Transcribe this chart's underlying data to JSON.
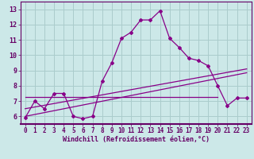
{
  "bg_color": "#cce8e8",
  "plot_bg_color": "#cce8e8",
  "grid_color": "#aacccc",
  "line_color": "#880088",
  "marker_color": "#880088",
  "xlabel": "Windchill (Refroidissement éolien,°C)",
  "xlim": [
    -0.5,
    23.5
  ],
  "ylim": [
    5.5,
    13.5
  ],
  "xticks": [
    0,
    1,
    2,
    3,
    4,
    5,
    6,
    7,
    8,
    9,
    10,
    11,
    12,
    13,
    14,
    15,
    16,
    17,
    18,
    19,
    20,
    21,
    22,
    23
  ],
  "yticks": [
    6,
    7,
    8,
    9,
    10,
    11,
    12,
    13
  ],
  "series1_x": [
    0,
    1,
    2,
    3,
    4,
    5,
    6,
    7,
    8,
    9,
    10,
    11,
    12,
    13,
    14,
    15,
    16,
    17,
    18,
    19,
    20,
    21,
    22,
    23
  ],
  "series1_y": [
    5.9,
    7.0,
    6.5,
    7.5,
    7.5,
    6.0,
    5.85,
    6.0,
    8.3,
    9.5,
    11.1,
    11.5,
    12.3,
    12.3,
    12.9,
    11.1,
    10.5,
    9.8,
    9.65,
    9.3,
    8.0,
    6.7,
    7.2,
    7.2
  ],
  "series2_x": [
    0,
    23
  ],
  "series2_y": [
    6.5,
    9.1
  ],
  "series3_x": [
    0,
    20
  ],
  "series3_y": [
    7.25,
    7.25
  ],
  "series4_x": [
    0,
    23
  ],
  "series4_y": [
    6.0,
    8.85
  ],
  "xlabel_color": "#660066",
  "tick_color": "#660066",
  "axis_color": "#660066"
}
